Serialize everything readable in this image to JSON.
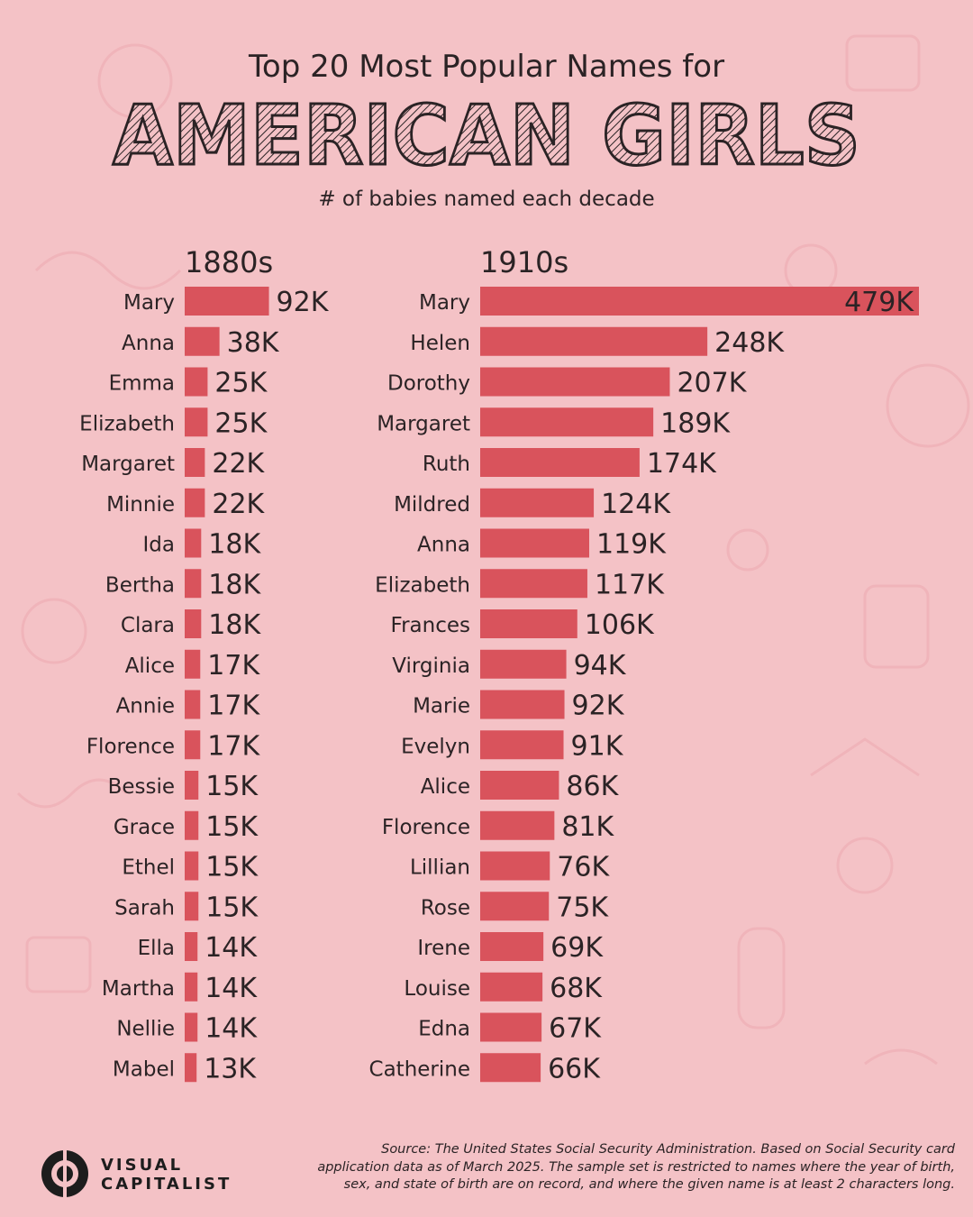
{
  "header": {
    "title_top": "Top 20 Most Popular Names for",
    "title_main": "AMERICAN GIRLS",
    "subtitle": "# of babies named each decade"
  },
  "colors": {
    "background": "#f4c2c6",
    "bar": "#d9535c",
    "text": "#2b2325"
  },
  "chart_data": [
    {
      "type": "bar",
      "orientation": "horizontal",
      "title": "1880s",
      "categories": [
        "Mary",
        "Anna",
        "Emma",
        "Elizabeth",
        "Margaret",
        "Minnie",
        "Ida",
        "Bertha",
        "Clara",
        "Alice",
        "Annie",
        "Florence",
        "Bessie",
        "Grace",
        "Ethel",
        "Sarah",
        "Ella",
        "Martha",
        "Nellie",
        "Mabel"
      ],
      "values": [
        92,
        38,
        25,
        25,
        22,
        22,
        18,
        18,
        18,
        17,
        17,
        17,
        15,
        15,
        15,
        15,
        14,
        14,
        14,
        13
      ],
      "labels": [
        "92K",
        "38K",
        "25K",
        "25K",
        "22K",
        "22K",
        "18K",
        "18K",
        "18K",
        "17K",
        "17K",
        "17K",
        "15K",
        "15K",
        "15K",
        "15K",
        "14K",
        "14K",
        "14K",
        "13K"
      ],
      "unit": "K"
    },
    {
      "type": "bar",
      "orientation": "horizontal",
      "title": "1910s",
      "categories": [
        "Mary",
        "Helen",
        "Dorothy",
        "Margaret",
        "Ruth",
        "Mildred",
        "Anna",
        "Elizabeth",
        "Frances",
        "Virginia",
        "Marie",
        "Evelyn",
        "Alice",
        "Florence",
        "Lillian",
        "Rose",
        "Irene",
        "Louise",
        "Edna",
        "Catherine"
      ],
      "values": [
        479,
        248,
        207,
        189,
        174,
        124,
        119,
        117,
        106,
        94,
        92,
        91,
        86,
        81,
        76,
        75,
        69,
        68,
        67,
        66
      ],
      "labels": [
        "479K",
        "248K",
        "207K",
        "189K",
        "174K",
        "124K",
        "119K",
        "117K",
        "106K",
        "94K",
        "92K",
        "91K",
        "86K",
        "81K",
        "76K",
        "75K",
        "69K",
        "68K",
        "67K",
        "66K"
      ],
      "unit": "K"
    }
  ],
  "footer": {
    "brand_line1": "VISUAL",
    "brand_line2": "CAPITALIST",
    "source_line1": "Source: The United States Social Security Administration. Based on Social Security card",
    "source_line2": "application data as of March 2025. The sample set is restricted to names where the year of birth,",
    "source_line3": "sex, and state of birth are on record, and where the given name is at least 2 characters long."
  }
}
